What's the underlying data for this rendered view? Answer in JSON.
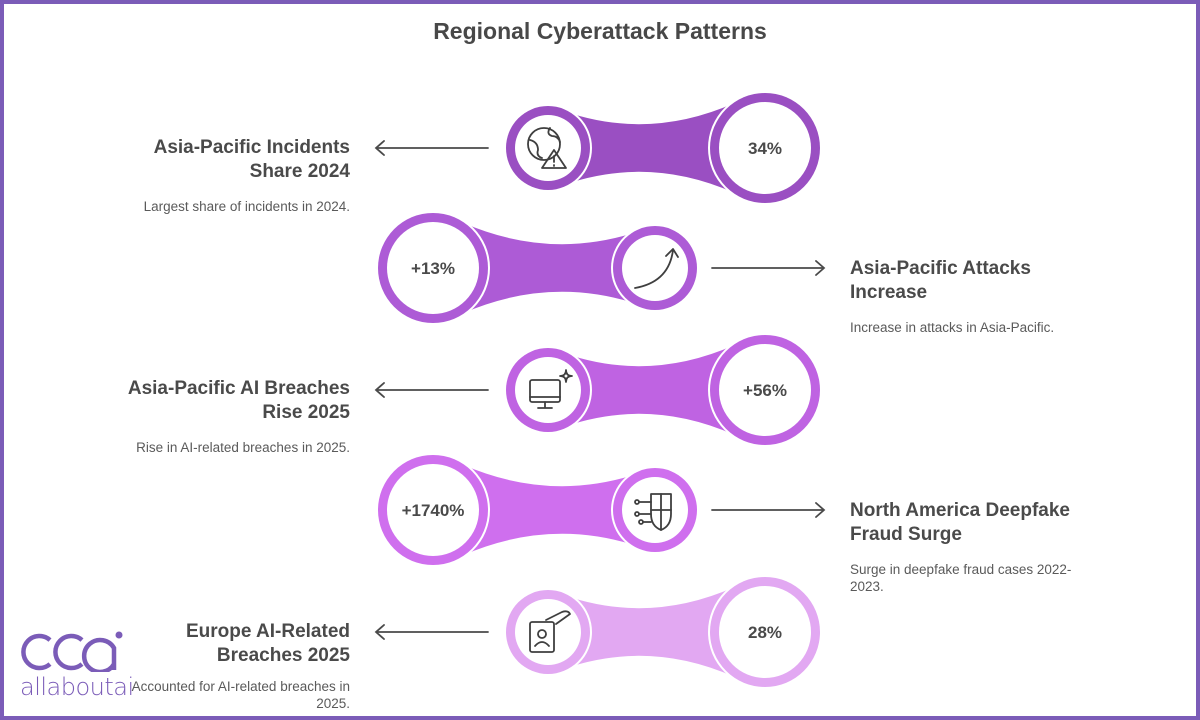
{
  "title": "Regional Cyberattack Patterns",
  "items": [
    {
      "value": "34%",
      "icon": "globe-warning-icon",
      "side": "left",
      "heading": "Asia-Pacific Incidents Share 2024",
      "description": "Largest share of incidents in 2024.",
      "color": "#9a4fc2"
    },
    {
      "value": "+13%",
      "icon": "trend-up-arrow-icon",
      "side": "right",
      "heading": "Asia-Pacific Attacks Increase",
      "description": "Increase in attacks in Asia-Pacific.",
      "color": "#ad5bd6"
    },
    {
      "value": "+56%",
      "icon": "monitor-sparkle-icon",
      "side": "left",
      "heading": "Asia-Pacific AI Breaches Rise 2025",
      "description": "Rise in AI-related breaches in 2025.",
      "color": "#bf63e2"
    },
    {
      "value": "+1740%",
      "icon": "circuit-shield-icon",
      "side": "right",
      "heading": "North America Deepfake Fraud Surge",
      "description": "Surge in deepfake fraud cases 2022-2023.",
      "color": "#cf6fee"
    },
    {
      "value": "28%",
      "icon": "id-card-hand-icon",
      "side": "left",
      "heading": "Europe AI-Related Breaches 2025",
      "description": "Accounted for AI-related breaches in 2025.",
      "color": "#e2a8f2"
    }
  ],
  "logo": {
    "text": "allaboutai",
    "color": "#7b5cb8"
  }
}
